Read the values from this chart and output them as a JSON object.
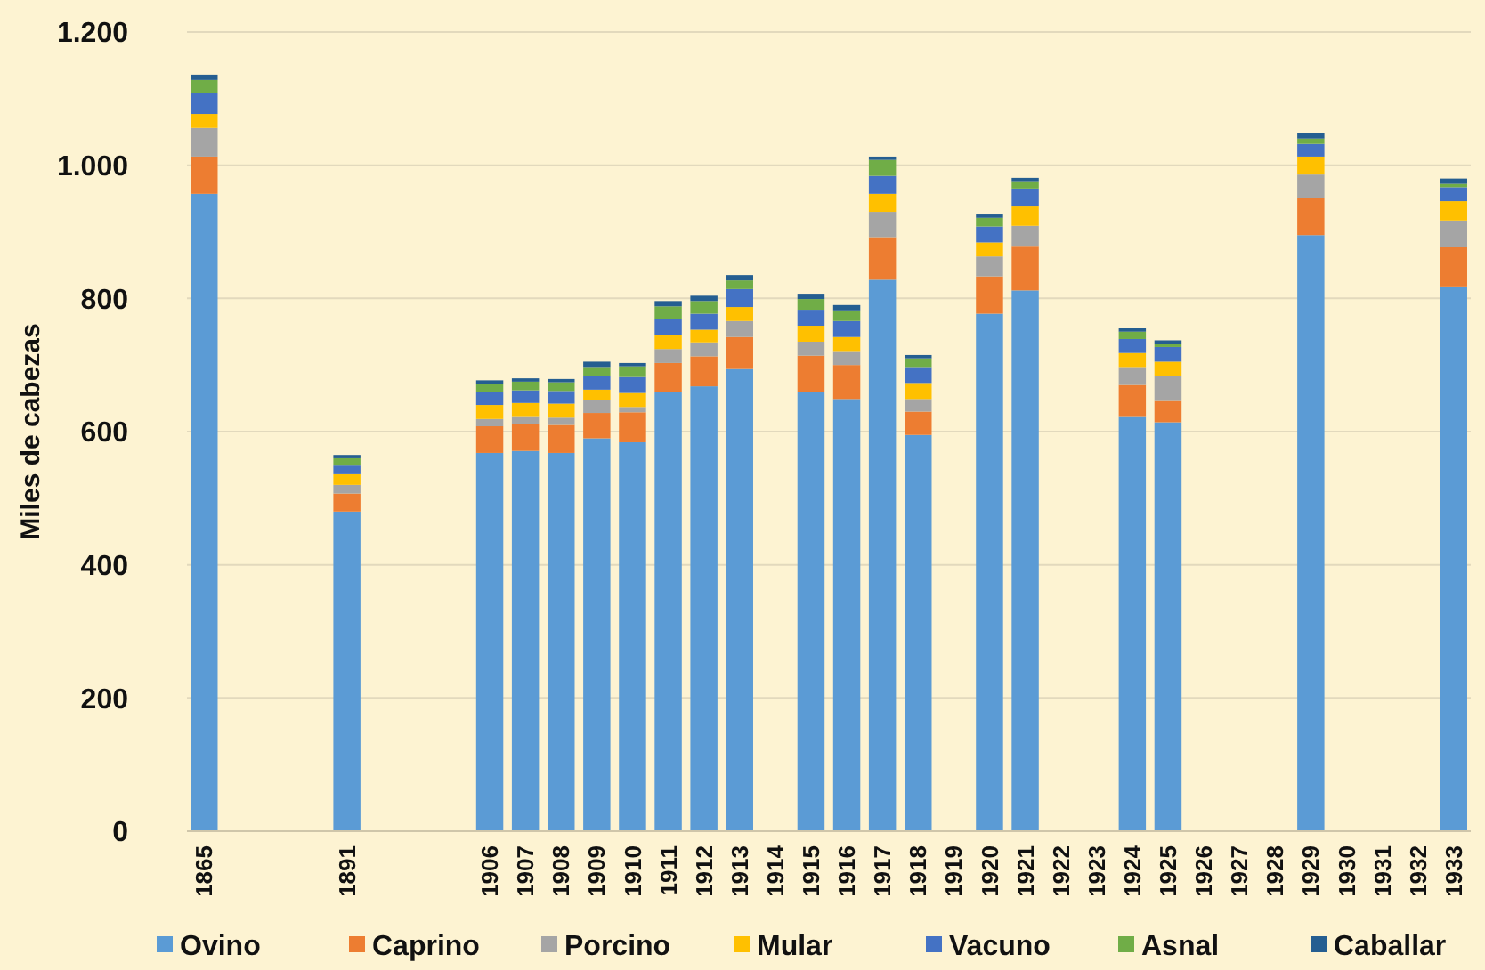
{
  "chart_data": {
    "type": "bar",
    "stacked": true,
    "ylabel": "Miles de cabezas",
    "categories": [
      "1865",
      null,
      null,
      null,
      "1891",
      null,
      null,
      null,
      "1906",
      "1907",
      "1908",
      "1909",
      "1910",
      "1911",
      "1912",
      "1913",
      "1914",
      "1915",
      "1916",
      "1917",
      "1918",
      "1919",
      "1920",
      "1921",
      "1922",
      "1923",
      "1924",
      "1925",
      "1926",
      "1927",
      "1928",
      "1929",
      "1930",
      "1931",
      "1932",
      "1933"
    ],
    "ylim": [
      0,
      1200
    ],
    "yticks": [
      0,
      200,
      400,
      600,
      800,
      {
        "value": 1000,
        "label": "1.000"
      },
      {
        "value": 1200,
        "label": "1.200"
      }
    ],
    "grid": "y",
    "legend": "bottom",
    "series": [
      {
        "name": "Ovino",
        "color": "#5b9bd5",
        "values": [
          957,
          null,
          null,
          null,
          480,
          null,
          null,
          null,
          568,
          571,
          568,
          590,
          584,
          660,
          668,
          694,
          null,
          660,
          649,
          828,
          595,
          null,
          777,
          812,
          null,
          null,
          622,
          614,
          null,
          null,
          null,
          895,
          null,
          null,
          null,
          818
        ]
      },
      {
        "name": "Caprino",
        "color": "#ed7d31",
        "values": [
          56,
          null,
          null,
          null,
          27,
          null,
          null,
          null,
          40,
          40,
          42,
          38,
          45,
          43,
          45,
          48,
          null,
          54,
          51,
          64,
          35,
          null,
          56,
          67,
          null,
          null,
          48,
          32,
          null,
          null,
          null,
          56,
          null,
          null,
          null,
          59
        ]
      },
      {
        "name": "Porcino",
        "color": "#a5a5a5",
        "values": [
          43,
          null,
          null,
          null,
          13,
          null,
          null,
          null,
          11,
          11,
          11,
          19,
          8,
          21,
          21,
          24,
          null,
          21,
          21,
          38,
          19,
          null,
          30,
          30,
          null,
          null,
          27,
          38,
          null,
          null,
          null,
          35,
          null,
          null,
          null,
          40
        ]
      },
      {
        "name": "Mular",
        "color": "#ffc000",
        "values": [
          21,
          null,
          null,
          null,
          16,
          null,
          null,
          null,
          21,
          21,
          21,
          16,
          21,
          21,
          19,
          21,
          null,
          24,
          21,
          27,
          24,
          null,
          21,
          29,
          null,
          null,
          21,
          21,
          null,
          null,
          null,
          27,
          null,
          null,
          null,
          29
        ]
      },
      {
        "name": "Vacuno",
        "color": "#4472c4",
        "values": [
          32,
          null,
          null,
          null,
          13,
          null,
          null,
          null,
          19,
          19,
          19,
          21,
          24,
          24,
          24,
          27,
          null,
          24,
          24,
          27,
          24,
          null,
          24,
          27,
          null,
          null,
          21,
          22,
          null,
          null,
          null,
          19,
          null,
          null,
          null,
          21
        ]
      },
      {
        "name": "Asnal",
        "color": "#70ad47",
        "values": [
          19,
          null,
          null,
          null,
          11,
          null,
          null,
          null,
          13,
          13,
          13,
          13,
          16,
          19,
          19,
          13,
          null,
          16,
          16,
          24,
          13,
          null,
          13,
          11,
          null,
          null,
          11,
          5,
          null,
          null,
          null,
          8,
          null,
          null,
          null,
          5
        ]
      },
      {
        "name": "Caballar",
        "color": "#255e91",
        "values": [
          8,
          null,
          null,
          null,
          5,
          null,
          null,
          null,
          5,
          5,
          5,
          8,
          5,
          8,
          8,
          8,
          null,
          8,
          8,
          5,
          5,
          null,
          5,
          5,
          null,
          null,
          5,
          5,
          null,
          null,
          null,
          8,
          null,
          null,
          null,
          8
        ]
      }
    ]
  }
}
